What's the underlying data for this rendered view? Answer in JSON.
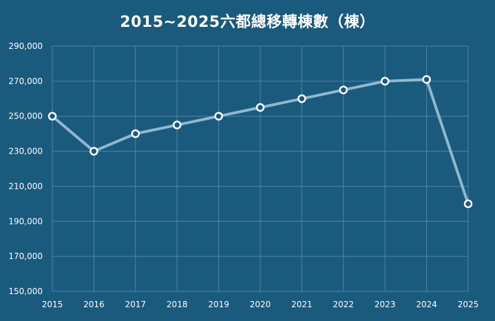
{
  "chart_data": {
    "type": "line",
    "title": "2015~2025六都總移轉棟數（棟）",
    "xlabel": "",
    "ylabel": "",
    "x": [
      "2015",
      "2016",
      "2017",
      "2018",
      "2019",
      "2020",
      "2021",
      "2022",
      "2023",
      "2024",
      "2025"
    ],
    "series": [
      {
        "values": [
          250000,
          230000,
          240000,
          245000,
          250000,
          255000,
          260000,
          265000,
          270000,
          271000,
          200000
        ]
      }
    ],
    "ylim": [
      150000,
      290000
    ],
    "yticks": [
      "150,000",
      "170,000",
      "190,000",
      "210,000",
      "230,000",
      "250,000",
      "270,000",
      "290,000"
    ],
    "ytick_values": [
      150000,
      170000,
      190000,
      210000,
      230000,
      250000,
      270000,
      290000
    ],
    "grid": true,
    "legend": "none",
    "colors": {
      "background": "#1a5a7d",
      "line": "#8fb8d2",
      "marker_fill": "#1a5a7d",
      "marker_stroke": "#ffffff",
      "grid": "#4f86a6",
      "text": "#ffffff"
    }
  }
}
